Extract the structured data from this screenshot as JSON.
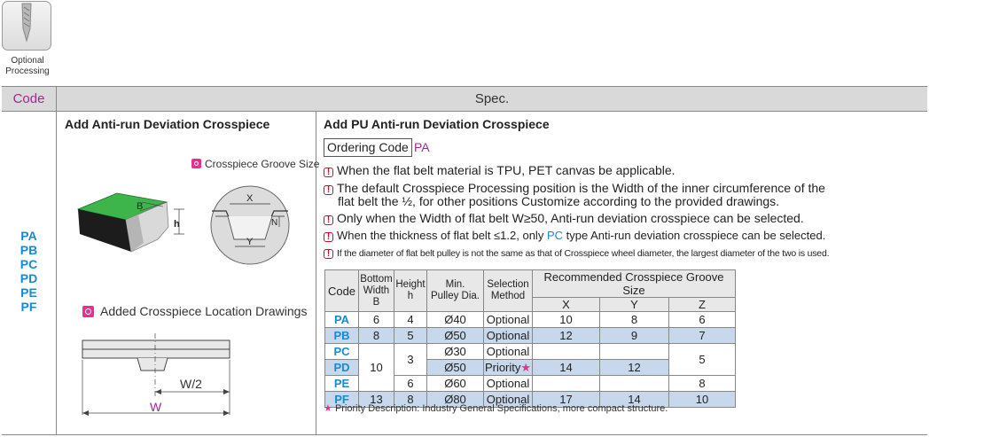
{
  "icon": {
    "name": "optional-processing-icon",
    "label_line1": "Optional",
    "label_line2": "Processing"
  },
  "header": {
    "code": "Code",
    "spec": "Spec."
  },
  "codes": [
    "PA",
    "PB",
    "PC",
    "PD",
    "PE",
    "PF"
  ],
  "left": {
    "title": "Add Anti-run Deviation Crosspiece",
    "groove_legend": "Crosspiece Groove Size",
    "location_legend": "Added Crosspiece Location Drawings",
    "diagram_labels": {
      "b": "B",
      "h": "h",
      "x": "X",
      "y": "Y",
      "n": "N",
      "half_w": "W/2",
      "w": "W"
    }
  },
  "right": {
    "title": "Add PU Anti-run Deviation Crosspiece",
    "ordering_label": "Ordering Code",
    "ordering_value": "PA",
    "notes": {
      "n1": "When the flat belt material is TPU, PET canvas be applicable.",
      "n2a": "The default Crosspiece Processing position is the Width of the inner circumference of the",
      "n2b": "flat belt the ½, for other positions Customize according to the provided drawings.",
      "n3": "Only when the Width of flat belt W≥50, Anti-run deviation crosspiece can be selected.",
      "n4a": "When the thickness of flat belt ≤1.2, only",
      "n4pc": "PC",
      "n4b": "type Anti-run deviation crosspiece can be selected.",
      "n5": "If the diameter of flat belt pulley is not the same as that of Crosspiece wheel diameter, the largest diameter of the two is used."
    },
    "table": {
      "headers": {
        "code": "Code",
        "bottom_width_1": "Bottom",
        "bottom_width_2": "Width B",
        "height_1": "Height",
        "height_2": "h",
        "min_pulley_1": "Min.",
        "min_pulley_2": "Pulley Dia.",
        "selection_1": "Selection",
        "selection_2": "Method",
        "recommended": "Recommended Crosspiece Groove Size",
        "x": "X",
        "y": "Y",
        "z": "Z"
      },
      "rows": {
        "pa": {
          "code": "PA",
          "b": "6",
          "h": "4",
          "dia": "Ø40",
          "method": "Optional",
          "x": "10",
          "y": "8",
          "z": "6"
        },
        "pb": {
          "code": "PB",
          "b": "8",
          "h": "5",
          "dia": "Ø50",
          "method": "Optional",
          "x": "12",
          "y": "9",
          "z": "7"
        },
        "pc": {
          "code": "PC",
          "dia": "Ø30",
          "method": "Optional"
        },
        "pd": {
          "code": "PD",
          "dia": "Ø50",
          "method": "Priority",
          "x": "14",
          "y": "12"
        },
        "pe": {
          "code": "PE",
          "h": "6",
          "dia": "Ø60",
          "method": "Optional",
          "z": "8"
        },
        "pf": {
          "code": "PF",
          "b": "13",
          "h": "8",
          "dia": "Ø80",
          "method": "Optional",
          "x": "17",
          "y": "14",
          "z": "10"
        },
        "merged_b": "10",
        "merged_h": "3",
        "merged_z": "5"
      },
      "star": "★"
    },
    "footnote_star": "★",
    "footnote": "Priority Description: Industry General Specifications, more compact structure."
  },
  "colors": {
    "code_blue": "#1a8ad0",
    "magenta": "#9b2a8c",
    "highlight": "#c7d7ec",
    "warning_red": "#c8102e",
    "belt_green": "#2ea84a"
  }
}
